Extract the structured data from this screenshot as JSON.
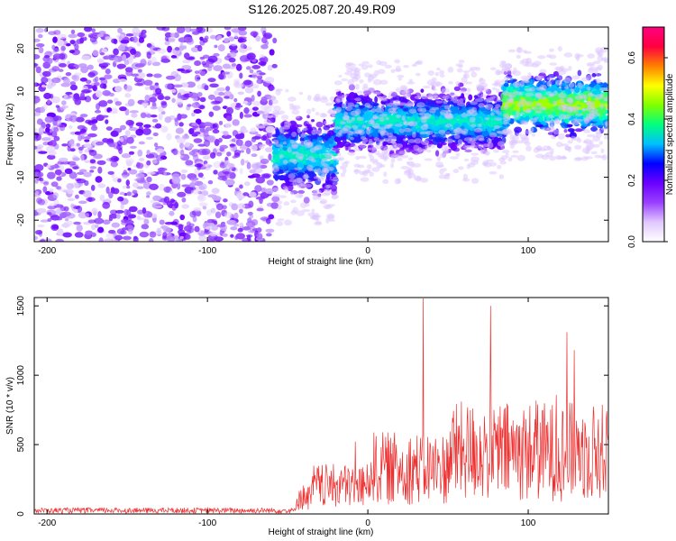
{
  "title": "S126.2025.087.20.49.R09",
  "chart_data": [
    {
      "type": "heatmap",
      "xlabel": "Height of straight line (km)",
      "ylabel": "Frequency (Hz)",
      "xlim": [
        -208,
        150
      ],
      "ylim": [
        -25,
        25
      ],
      "xticks": [
        -200,
        -100,
        0,
        100
      ],
      "xtick_labels": [
        "-200",
        "-100",
        "0",
        "100"
      ],
      "yticks": [
        -20,
        -10,
        0,
        10,
        20
      ],
      "ytick_labels": [
        "-20",
        "-10",
        "0",
        "10",
        "20"
      ],
      "colorbar": {
        "label": "Normalized spectral amplitude",
        "range": [
          0,
          0.7
        ],
        "ticks": [
          0.0,
          0.2,
          0.4,
          0.6
        ],
        "tick_labels": [
          "0.0",
          "0.2",
          "0.4",
          "0.6"
        ],
        "colors": [
          "#ffffff",
          "#e0c8ff",
          "#9a40ff",
          "#6a00ff",
          "#0000ff",
          "#00c0ff",
          "#00ff80",
          "#80ff00",
          "#ffff00",
          "#ff8000",
          "#ff0040",
          "#ff0080"
        ]
      },
      "bands": [
        {
          "x_range": [
            -208,
            -58
          ],
          "f_range": [
            -25,
            25
          ],
          "level": "noise"
        },
        {
          "x_range": [
            -58,
            -20
          ],
          "f_center": -5,
          "f_halfwidth": 10,
          "level": "signal"
        },
        {
          "x_range": [
            -20,
            85
          ],
          "f_center": 3,
          "f_halfwidth": 8,
          "level": "signal"
        },
        {
          "x_range": [
            85,
            150
          ],
          "f_center": 7,
          "f_halfwidth": 7,
          "level": "strong"
        }
      ],
      "grid": false
    },
    {
      "type": "line",
      "xlabel": "Height of straight line (km)",
      "ylabel": "SNR (10 * v/v)",
      "xlim": [
        -208,
        150
      ],
      "ylim": [
        0,
        1560
      ],
      "xticks": [
        -200,
        -100,
        0,
        100
      ],
      "xtick_labels": [
        "-200",
        "-100",
        "0",
        "100"
      ],
      "yticks": [
        0,
        500,
        1000,
        1500
      ],
      "ytick_labels": [
        "0",
        "500",
        "1000",
        "1500"
      ],
      "color": "#ee3030",
      "segments": [
        {
          "x_range": [
            -208,
            -45
          ],
          "typical": 25,
          "peak": 40
        },
        {
          "x_range": [
            -45,
            -35
          ],
          "typical": 120,
          "peak": 360
        },
        {
          "x_range": [
            -35,
            0
          ],
          "typical": 200,
          "peak": 600
        },
        {
          "x_range": [
            0,
            50
          ],
          "typical": 330,
          "peak": 1560
        },
        {
          "x_range": [
            50,
            150
          ],
          "typical": 450,
          "peak": 1530
        }
      ],
      "grid": false
    }
  ]
}
